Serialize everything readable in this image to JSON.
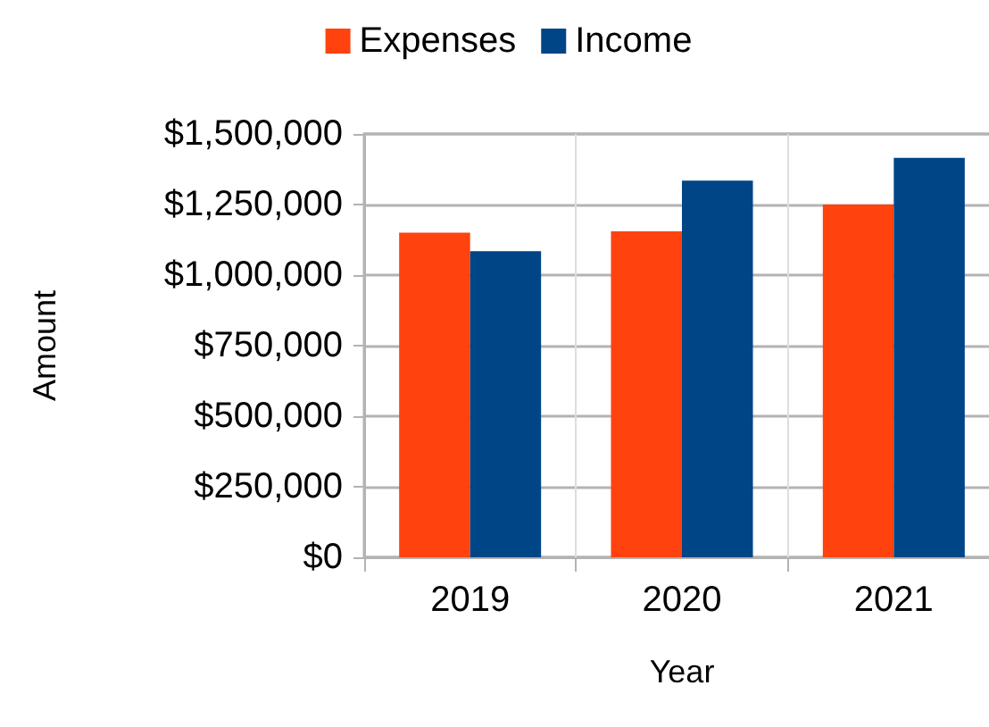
{
  "chart_data": {
    "type": "bar",
    "xlabel": "Year",
    "ylabel": "Amount",
    "categories": [
      "2019",
      "2020",
      "2021"
    ],
    "series": [
      {
        "name": "Expenses",
        "color": "#ff420e",
        "values": [
          1150000,
          1155000,
          1250000
        ]
      },
      {
        "name": "Income",
        "color": "#004586",
        "values": [
          1085000,
          1335000,
          1415000
        ]
      }
    ],
    "ylim": [
      0,
      1500000
    ],
    "yticks": [
      {
        "value": 0,
        "label": "$0"
      },
      {
        "value": 250000,
        "label": "$250,000"
      },
      {
        "value": 500000,
        "label": "$500,000"
      },
      {
        "value": 750000,
        "label": "$750,000"
      },
      {
        "value": 1000000,
        "label": "$1,000,000"
      },
      {
        "value": 1250000,
        "label": "$1,250,000"
      },
      {
        "value": 1500000,
        "label": "$1,500,000"
      }
    ],
    "grid": true,
    "legend": "top"
  }
}
